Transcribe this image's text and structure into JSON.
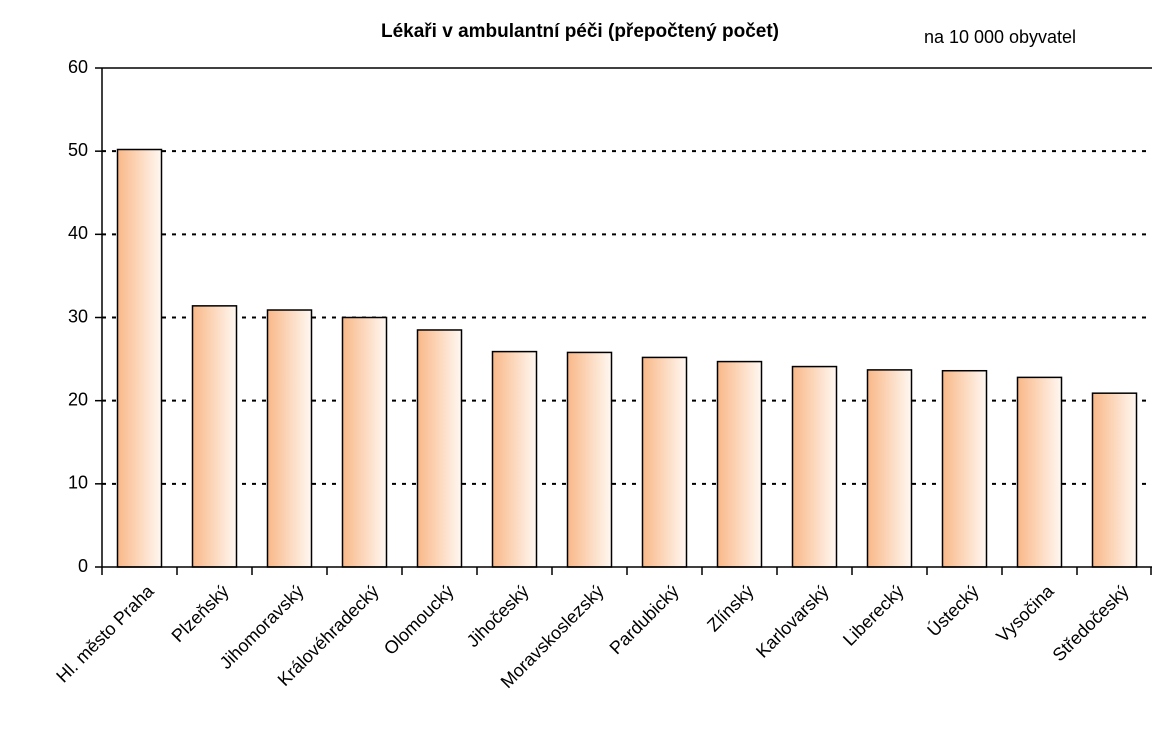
{
  "chart_data": {
    "type": "bar",
    "title": "Lékaři v ambulantní péči (přepočtený počet)",
    "subtitle": "na 10 000 obyvatel",
    "categories": [
      "Hl. město Praha",
      "Plzeňský",
      "Jihomoravský",
      "Královéhradecký",
      "Olomoucký",
      "Jihočeský",
      "Moravskoslezský",
      "Pardubický",
      "Zlínský",
      "Karlovarský",
      "Liberecký",
      "Ústecký",
      "Vysočina",
      "Středočeský"
    ],
    "values": [
      50.2,
      31.4,
      30.9,
      30.0,
      28.5,
      25.9,
      25.8,
      25.2,
      24.7,
      24.1,
      23.7,
      23.6,
      22.8,
      20.9
    ],
    "color": "#f9b888",
    "ylim": [
      0,
      60
    ],
    "yticks": [
      0,
      10,
      20,
      30,
      40,
      50,
      60
    ],
    "grid": true
  }
}
